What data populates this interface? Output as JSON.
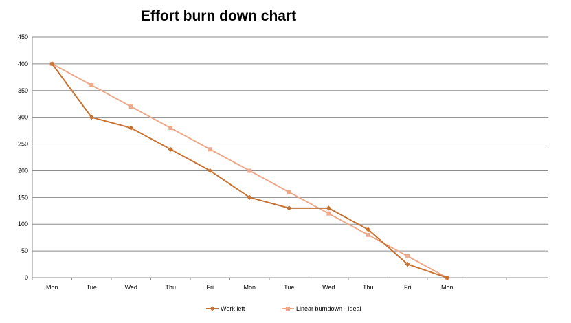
{
  "chart_data": {
    "type": "line",
    "title": "Effort burn down chart",
    "xlabel": "",
    "ylabel": "",
    "categories": [
      "Mon",
      "Tue",
      "Wed",
      "Thu",
      "Fri",
      "Mon",
      "Tue",
      "Wed",
      "Thu",
      "Fri",
      "Mon"
    ],
    "ylim": [
      0,
      450
    ],
    "yticks": [
      "0",
      "50",
      "100",
      "150",
      "200",
      "250",
      "300",
      "350",
      "400",
      "450"
    ],
    "grid": true,
    "legend_position": "bottom",
    "series": [
      {
        "name": "Work left",
        "color": "#c8702e",
        "marker": "diamond",
        "values": [
          400,
          300,
          280,
          240,
          200,
          150,
          130,
          130,
          90,
          25,
          0
        ]
      },
      {
        "name": "Linear burndown - Ideal",
        "color": "#eda98a",
        "marker": "square",
        "values": [
          400,
          360,
          320,
          280,
          240,
          200,
          160,
          120,
          80,
          40,
          0
        ]
      }
    ]
  }
}
